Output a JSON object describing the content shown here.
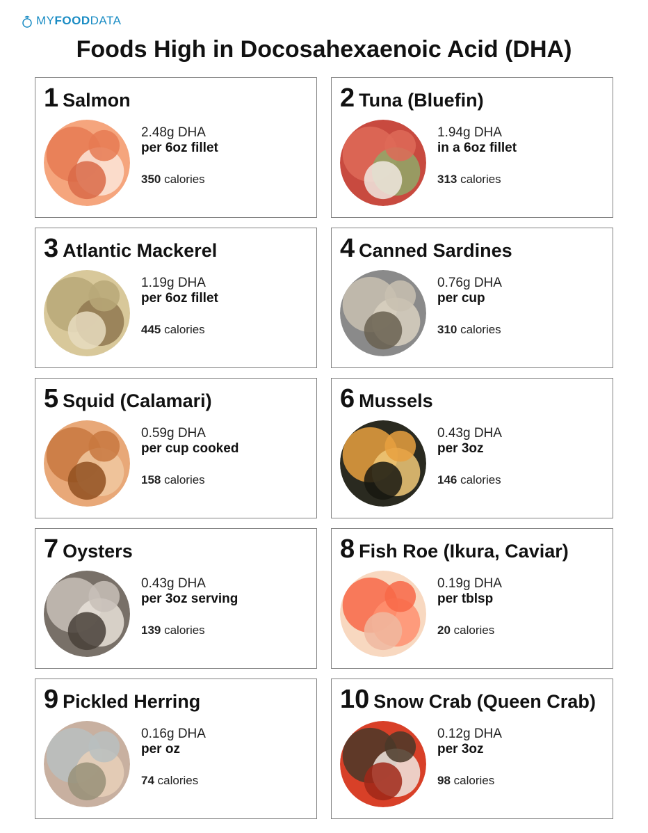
{
  "logo": {
    "my": "MY",
    "food": "FOOD",
    "data": "DATA"
  },
  "title": "Foods High in Docosahexaenoic Acid (DHA)",
  "calories_label": "calories",
  "foods": [
    {
      "rank": "1",
      "name": "Salmon",
      "dha_amount": "2.48g DHA",
      "serving": "per 6oz fillet",
      "calories": "350",
      "img_colors": [
        "#f5a57d",
        "#e67a52",
        "#fce5d8",
        "#d96a48"
      ]
    },
    {
      "rank": "2",
      "name": "Tuna (Bluefin)",
      "dha_amount": "1.94g DHA",
      "serving": "in a 6oz fillet",
      "calories": "313",
      "img_colors": [
        "#c84a3f",
        "#de6a58",
        "#8fa868",
        "#f0e8e0"
      ]
    },
    {
      "rank": "3",
      "name": "Atlantic Mackerel",
      "dha_amount": "1.19g DHA",
      "serving": "per 6oz fillet",
      "calories": "445",
      "img_colors": [
        "#d8c89a",
        "#b8a878",
        "#907850",
        "#e8dcc0"
      ]
    },
    {
      "rank": "4",
      "name": "Canned Sardines",
      "dha_amount": "0.76g DHA",
      "serving": "per cup",
      "calories": "310",
      "img_colors": [
        "#8a8a8a",
        "#c8c0b0",
        "#d8d0c0",
        "#686050"
      ]
    },
    {
      "rank": "5",
      "name": "Squid (Calamari)",
      "dha_amount": "0.59g DHA",
      "serving": "per cup cooked",
      "calories": "158",
      "img_colors": [
        "#e8a878",
        "#c87840",
        "#f0c8a0",
        "#905020"
      ]
    },
    {
      "rank": "6",
      "name": "Mussels",
      "dha_amount": "0.43g DHA",
      "serving": "per 3oz",
      "calories": "146",
      "img_colors": [
        "#2a2a20",
        "#e8a040",
        "#f0c878",
        "#181810"
      ]
    },
    {
      "rank": "7",
      "name": "Oysters",
      "dha_amount": "0.43g DHA",
      "serving": "per 3oz serving",
      "calories": "139",
      "img_colors": [
        "#787068",
        "#c8c0b8",
        "#e8e0d8",
        "#484038"
      ]
    },
    {
      "rank": "8",
      "name": "Fish Roe (Ikura, Caviar)",
      "dha_amount": "0.19g DHA",
      "serving": "per tblsp",
      "calories": "20",
      "img_colors": [
        "#f8d8c0",
        "#f86848",
        "#ff9070",
        "#f0b8a0"
      ]
    },
    {
      "rank": "9",
      "name": "Pickled Herring",
      "dha_amount": "0.16g DHA",
      "serving": "per oz",
      "calories": "74",
      "img_colors": [
        "#c8b0a0",
        "#b8c0c0",
        "#e8d0b8",
        "#989078"
      ]
    },
    {
      "rank": "10",
      "name": "Snow Crab (Queen Crab)",
      "dha_amount": "0.12g DHA",
      "serving": "per 3oz",
      "calories": "98",
      "img_colors": [
        "#d84028",
        "#4a3828",
        "#f0e8e0",
        "#a02818"
      ]
    }
  ]
}
